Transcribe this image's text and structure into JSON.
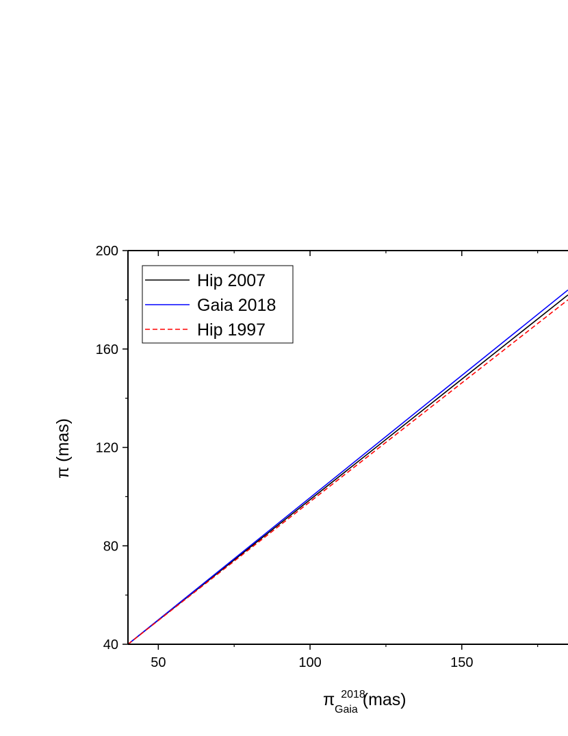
{
  "chart_data": {
    "type": "line",
    "xlabel": {
      "symbol": "π",
      "superscript": "2018",
      "subscript": "Gaia",
      "unit": " (mas)"
    },
    "ylabel": "π (mas)",
    "xlim": [
      40,
      185
    ],
    "ylim": [
      40,
      200
    ],
    "xticks": [
      50,
      100,
      150
    ],
    "yticks": [
      40,
      80,
      120,
      160,
      200
    ],
    "xminor_step": 25,
    "yminor_step": 20,
    "series": [
      {
        "name": "Hip 2007",
        "color": "#000000",
        "dash": "solid",
        "x": [
          40,
          185
        ],
        "y": [
          40,
          182
        ]
      },
      {
        "name": "Gaia 2018",
        "color": "#0000ff",
        "dash": "solid",
        "x": [
          40,
          185
        ],
        "y": [
          40,
          184
        ]
      },
      {
        "name": "Hip 1997",
        "color": "#ff0000",
        "dash": "dashed",
        "x": [
          40,
          185
        ],
        "y": [
          40,
          180
        ]
      }
    ],
    "legend": "top-left"
  }
}
